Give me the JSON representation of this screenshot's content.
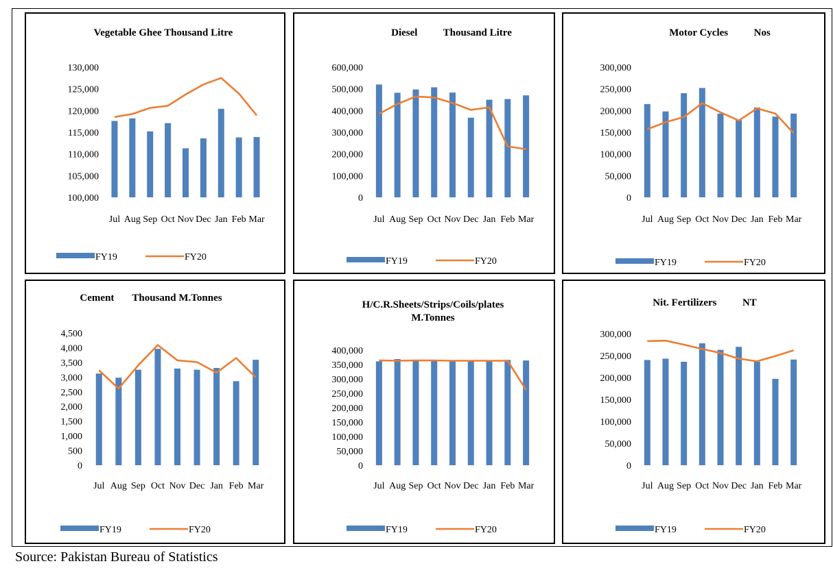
{
  "footer": {
    "source": "Source: Pakistan Bureau of Statistics"
  },
  "legend": {
    "bar_label": "FY19",
    "line_label": "FY20"
  },
  "colors": {
    "bar": "#4F81BD",
    "line": "#ED7D31",
    "text": "#000000",
    "border": "#000000"
  },
  "chart_data": [
    {
      "type": "bar+line",
      "title": "Vegetable Ghee Thousand Litre",
      "categories": [
        "Jul",
        "Aug",
        "Sep",
        "Oct",
        "Nov",
        "Dec",
        "Jan",
        "Feb",
        "Mar"
      ],
      "ylim": [
        100000,
        130000
      ],
      "yticks": [
        100000,
        105000,
        110000,
        115000,
        120000,
        125000,
        130000
      ],
      "ytick_labels": [
        "100,000",
        "105,000",
        "110,000",
        "115,000",
        "120,000",
        "125,000",
        "130,000"
      ],
      "series": [
        {
          "name": "FY19",
          "type": "bar",
          "values": [
            117600,
            118200,
            115200,
            117100,
            111300,
            113600,
            120400,
            113800,
            113900
          ]
        },
        {
          "name": "FY20",
          "type": "line",
          "values": [
            118500,
            119200,
            120600,
            121100,
            123700,
            126000,
            127500,
            123900,
            118900
          ]
        }
      ],
      "legend_position": "bottom"
    },
    {
      "type": "bar+line",
      "title": "Diesel          Thousand Litre",
      "categories": [
        "Jul",
        "Aug",
        "Sep",
        "Oct",
        "Nov",
        "Dec",
        "Jan",
        "Feb",
        "Mar"
      ],
      "ylim": [
        0,
        600000
      ],
      "yticks": [
        0,
        100000,
        200000,
        300000,
        400000,
        500000,
        600000
      ],
      "ytick_labels": [
        "0",
        "100,000",
        "200,000",
        "300,000",
        "400,000",
        "500,000",
        "600,000"
      ],
      "series": [
        {
          "name": "FY19",
          "type": "bar",
          "values": [
            520000,
            482000,
            497000,
            507000,
            483000,
            367000,
            450000,
            453000,
            470000
          ]
        },
        {
          "name": "FY20",
          "type": "line",
          "values": [
            385000,
            430000,
            465000,
            460000,
            435000,
            403000,
            415000,
            235000,
            222000
          ]
        }
      ],
      "legend_position": "bottom"
    },
    {
      "type": "bar+line",
      "title": "Motor Cycles          Nos",
      "categories": [
        "Jul",
        "Aug",
        "Sep",
        "Oct",
        "Nov",
        "Dec",
        "Jan",
        "Feb",
        "Mar"
      ],
      "ylim": [
        0,
        300000
      ],
      "yticks": [
        0,
        50000,
        100000,
        150000,
        200000,
        250000,
        300000
      ],
      "ytick_labels": [
        "0",
        "50,000",
        "100,000",
        "150,000",
        "200,000",
        "250,000",
        "300,000"
      ],
      "series": [
        {
          "name": "FY19",
          "type": "bar",
          "values": [
            215000,
            198000,
            240000,
            252000,
            193000,
            178000,
            207000,
            186000,
            193000
          ]
        },
        {
          "name": "FY20",
          "type": "line",
          "values": [
            157000,
            173000,
            185000,
            217000,
            196000,
            177000,
            205000,
            193000,
            148000
          ]
        }
      ],
      "legend_position": "bottom"
    },
    {
      "type": "bar+line",
      "title": "Cement       Thousand M.Tonnes",
      "categories": [
        "Jul",
        "Aug",
        "Sep",
        "Oct",
        "Nov",
        "Dec",
        "Jan",
        "Feb",
        "Mar"
      ],
      "ylim": [
        0,
        4500
      ],
      "yticks": [
        0,
        500,
        1000,
        1500,
        2000,
        2500,
        3000,
        3500,
        4000,
        4500
      ],
      "ytick_labels": [
        "0",
        "500",
        "1,000",
        "1,500",
        "2,000",
        "2,500",
        "3,000",
        "3,500",
        "4,000",
        "4,500"
      ],
      "series": [
        {
          "name": "FY19",
          "type": "bar",
          "values": [
            3120,
            2980,
            3250,
            3960,
            3290,
            3250,
            3310,
            2860,
            3590
          ]
        },
        {
          "name": "FY20",
          "type": "line",
          "values": [
            3230,
            2610,
            3400,
            4090,
            3570,
            3510,
            3150,
            3650,
            2990
          ]
        }
      ],
      "legend_position": "bottom"
    },
    {
      "type": "bar+line",
      "title": "H/C.R.Sheets/Strips/Coils/plates M.Tonnes",
      "categories": [
        "Jul",
        "Aug",
        "Sep",
        "Oct",
        "Nov",
        "Dec",
        "Jan",
        "Feb",
        "Mar"
      ],
      "ylim": [
        0,
        400000
      ],
      "yticks": [
        0,
        50000,
        100000,
        150000,
        200000,
        250000,
        300000,
        350000,
        400000
      ],
      "ytick_labels": [
        "0",
        "50,000",
        "100,000",
        "150,000",
        "200,000",
        "250,000",
        "300,000",
        "350,000",
        "400,000"
      ],
      "series": [
        {
          "name": "FY19",
          "type": "bar",
          "values": [
            361000,
            369000,
            364000,
            362000,
            362000,
            362000,
            362000,
            366000,
            364000
          ]
        },
        {
          "name": "FY20",
          "type": "line",
          "values": [
            364000,
            363000,
            364000,
            364000,
            363000,
            363000,
            363000,
            363000,
            262000
          ]
        }
      ],
      "legend_position": "bottom"
    },
    {
      "type": "bar+line",
      "title": "Nit. Fertilizers          NT",
      "categories": [
        "Jul",
        "Aug",
        "Sep",
        "Oct",
        "Nov",
        "Dec",
        "Jan",
        "Feb",
        "Mar"
      ],
      "ylim": [
        0,
        300000
      ],
      "yticks": [
        0,
        50000,
        100000,
        150000,
        200000,
        250000,
        300000
      ],
      "ytick_labels": [
        "0",
        "50,000",
        "100,000",
        "150,000",
        "200,000",
        "250,000",
        "300,000"
      ],
      "series": [
        {
          "name": "FY19",
          "type": "bar",
          "values": [
            240000,
            243000,
            236000,
            278000,
            263000,
            270000,
            236000,
            197000,
            241000
          ]
        },
        {
          "name": "FY20",
          "type": "line",
          "values": [
            283000,
            284000,
            275000,
            265000,
            256000,
            243000,
            237000,
            249000,
            262000
          ]
        }
      ],
      "legend_position": "bottom"
    }
  ]
}
